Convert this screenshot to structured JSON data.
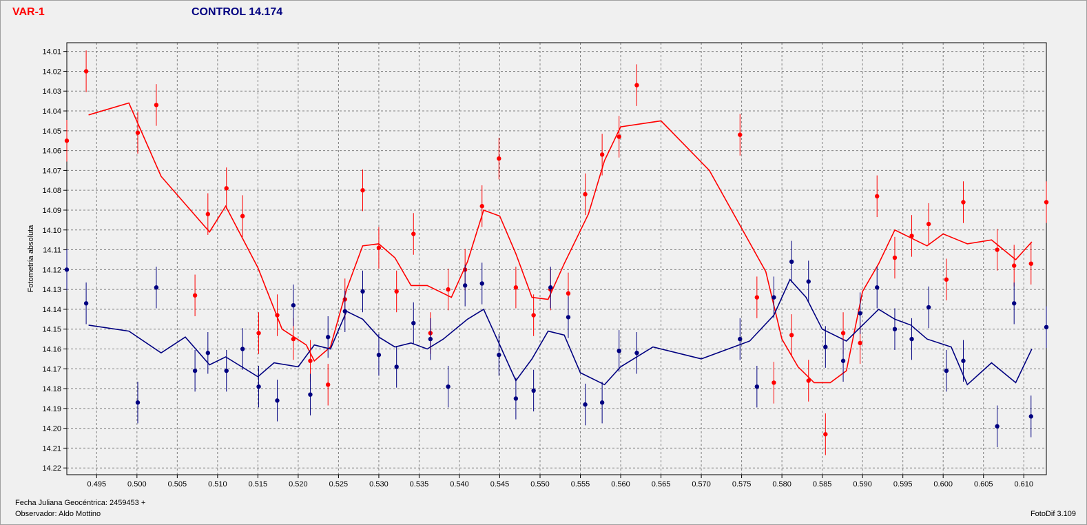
{
  "header": {
    "variable_title": "VAR-1",
    "control_title": "CONTROL 14.174"
  },
  "footer": {
    "jd_label": "Fecha Juliana Geocéntrica: 2459453 +",
    "observer_label": "Observador: Aldo Mottino",
    "version": "FotoDif 3.109"
  },
  "colors": {
    "variable": "#ff0000",
    "control": "#000080",
    "grid": "#808080",
    "background": "#f0f0f0"
  },
  "chart_data": {
    "type": "scatter",
    "ylabel": "Fotometría absoluta",
    "xlabel": "Fecha Juliana Geocéntrica: 2459453 +",
    "xlim": [
      0.4913,
      0.6128
    ],
    "ylim": [
      14.2234,
      14.0056
    ],
    "y_inverted": true,
    "grid": true,
    "x_ticks": [
      "0.495",
      "0.500",
      "0.505",
      "0.510",
      "0.515",
      "0.520",
      "0.525",
      "0.530",
      "0.535",
      "0.540",
      "0.545",
      "0.550",
      "0.555",
      "0.560",
      "0.565",
      "0.570",
      "0.575",
      "0.580",
      "0.585",
      "0.590",
      "0.595",
      "0.600",
      "0.605",
      "0.610"
    ],
    "y_ticks": [
      "14.01",
      "14.02",
      "14.03",
      "14.04",
      "14.05",
      "14.06",
      "14.07",
      "14.08",
      "14.09",
      "14.10",
      "14.11",
      "14.12",
      "14.13",
      "14.14",
      "14.15",
      "14.16",
      "14.17",
      "14.18",
      "14.19",
      "14.20",
      "14.21",
      "14.22"
    ],
    "error_bar": 0.0105,
    "series": [
      {
        "name": "VAR-1",
        "color": "#ff0000",
        "points": [
          [
            0.4913,
            14.055
          ],
          [
            0.4937,
            14.02
          ],
          [
            0.5001,
            14.051
          ],
          [
            0.5024,
            14.037
          ],
          [
            0.5072,
            14.133
          ],
          [
            0.5088,
            14.092
          ],
          [
            0.5111,
            14.079
          ],
          [
            0.5131,
            14.093
          ],
          [
            0.5151,
            14.152
          ],
          [
            0.5174,
            14.143
          ],
          [
            0.5194,
            14.155
          ],
          [
            0.5215,
            14.166
          ],
          [
            0.5237,
            14.178
          ],
          [
            0.5258,
            14.135
          ],
          [
            0.528,
            14.08
          ],
          [
            0.53,
            14.109
          ],
          [
            0.5322,
            14.131
          ],
          [
            0.5343,
            14.102
          ],
          [
            0.5364,
            14.152
          ],
          [
            0.5386,
            14.13
          ],
          [
            0.5407,
            14.12
          ],
          [
            0.5428,
            14.088
          ],
          [
            0.5449,
            14.064
          ],
          [
            0.547,
            14.129
          ],
          [
            0.5492,
            14.143
          ],
          [
            0.5513,
            14.13
          ],
          [
            0.5535,
            14.132
          ],
          [
            0.5556,
            14.082
          ],
          [
            0.5577,
            14.062
          ],
          [
            0.5598,
            14.053
          ],
          [
            0.562,
            14.027
          ],
          [
            0.5748,
            14.052
          ],
          [
            0.5769,
            14.134
          ],
          [
            0.579,
            14.177
          ],
          [
            0.5812,
            14.153
          ],
          [
            0.5833,
            14.176
          ],
          [
            0.5854,
            14.203
          ],
          [
            0.5876,
            14.152
          ],
          [
            0.5897,
            14.157
          ],
          [
            0.5918,
            14.083
          ],
          [
            0.594,
            14.114
          ],
          [
            0.5961,
            14.103
          ],
          [
            0.5982,
            14.097
          ],
          [
            0.6004,
            14.125
          ],
          [
            0.6025,
            14.086
          ],
          [
            0.6067,
            14.11
          ],
          [
            0.6088,
            14.118
          ],
          [
            0.6109,
            14.117
          ],
          [
            0.6128,
            14.086
          ]
        ],
        "trend": [
          [
            0.494,
            14.042
          ],
          [
            0.499,
            14.036
          ],
          [
            0.503,
            14.073
          ],
          [
            0.509,
            14.101
          ],
          [
            0.511,
            14.088
          ],
          [
            0.515,
            14.119
          ],
          [
            0.518,
            14.15
          ],
          [
            0.521,
            14.158
          ],
          [
            0.522,
            14.166
          ],
          [
            0.524,
            14.159
          ],
          [
            0.526,
            14.13
          ],
          [
            0.528,
            14.108
          ],
          [
            0.53,
            14.107
          ],
          [
            0.532,
            14.114
          ],
          [
            0.534,
            14.128
          ],
          [
            0.536,
            14.128
          ],
          [
            0.539,
            14.134
          ],
          [
            0.541,
            14.116
          ],
          [
            0.543,
            14.09
          ],
          [
            0.545,
            14.093
          ],
          [
            0.547,
            14.112
          ],
          [
            0.549,
            14.134
          ],
          [
            0.551,
            14.135
          ],
          [
            0.553,
            14.117
          ],
          [
            0.556,
            14.092
          ],
          [
            0.558,
            14.065
          ],
          [
            0.56,
            14.048
          ],
          [
            0.565,
            14.045
          ],
          [
            0.571,
            14.07
          ],
          [
            0.578,
            14.121
          ],
          [
            0.58,
            14.155
          ],
          [
            0.582,
            14.169
          ],
          [
            0.584,
            14.177
          ],
          [
            0.586,
            14.177
          ],
          [
            0.588,
            14.171
          ],
          [
            0.59,
            14.131
          ],
          [
            0.592,
            14.117
          ],
          [
            0.594,
            14.1
          ],
          [
            0.596,
            14.104
          ],
          [
            0.598,
            14.108
          ],
          [
            0.6,
            14.102
          ],
          [
            0.603,
            14.107
          ],
          [
            0.606,
            14.105
          ],
          [
            0.609,
            14.115
          ],
          [
            0.611,
            14.106
          ]
        ]
      },
      {
        "name": "CONTROL 14.174",
        "color": "#000080",
        "points": [
          [
            0.4913,
            14.12
          ],
          [
            0.4937,
            14.137
          ],
          [
            0.5001,
            14.187
          ],
          [
            0.5024,
            14.129
          ],
          [
            0.5072,
            14.171
          ],
          [
            0.5088,
            14.162
          ],
          [
            0.5111,
            14.171
          ],
          [
            0.5131,
            14.16
          ],
          [
            0.5151,
            14.179
          ],
          [
            0.5174,
            14.186
          ],
          [
            0.5194,
            14.138
          ],
          [
            0.5215,
            14.183
          ],
          [
            0.5237,
            14.154
          ],
          [
            0.5258,
            14.141
          ],
          [
            0.528,
            14.131
          ],
          [
            0.53,
            14.163
          ],
          [
            0.5322,
            14.169
          ],
          [
            0.5343,
            14.147
          ],
          [
            0.5364,
            14.155
          ],
          [
            0.5386,
            14.179
          ],
          [
            0.5407,
            14.128
          ],
          [
            0.5428,
            14.127
          ],
          [
            0.5449,
            14.163
          ],
          [
            0.547,
            14.185
          ],
          [
            0.5492,
            14.181
          ],
          [
            0.5513,
            14.129
          ],
          [
            0.5535,
            14.144
          ],
          [
            0.5556,
            14.188
          ],
          [
            0.5577,
            14.187
          ],
          [
            0.5598,
            14.161
          ],
          [
            0.562,
            14.162
          ],
          [
            0.5748,
            14.155
          ],
          [
            0.5769,
            14.179
          ],
          [
            0.579,
            14.134
          ],
          [
            0.5812,
            14.116
          ],
          [
            0.5833,
            14.126
          ],
          [
            0.5854,
            14.159
          ],
          [
            0.5876,
            14.166
          ],
          [
            0.5897,
            14.142
          ],
          [
            0.5918,
            14.129
          ],
          [
            0.594,
            14.15
          ],
          [
            0.5961,
            14.155
          ],
          [
            0.5982,
            14.139
          ],
          [
            0.6004,
            14.171
          ],
          [
            0.6025,
            14.166
          ],
          [
            0.6067,
            14.199
          ],
          [
            0.6088,
            14.137
          ],
          [
            0.6109,
            14.194
          ],
          [
            0.6128,
            14.149
          ]
        ],
        "trend": [
          [
            0.494,
            14.148
          ],
          [
            0.499,
            14.151
          ],
          [
            0.503,
            14.162
          ],
          [
            0.506,
            14.154
          ],
          [
            0.509,
            14.168
          ],
          [
            0.511,
            14.164
          ],
          [
            0.515,
            14.174
          ],
          [
            0.517,
            14.167
          ],
          [
            0.52,
            14.169
          ],
          [
            0.522,
            14.158
          ],
          [
            0.524,
            14.16
          ],
          [
            0.526,
            14.141
          ],
          [
            0.528,
            14.145
          ],
          [
            0.53,
            14.154
          ],
          [
            0.532,
            14.159
          ],
          [
            0.534,
            14.157
          ],
          [
            0.536,
            14.16
          ],
          [
            0.538,
            14.155
          ],
          [
            0.541,
            14.145
          ],
          [
            0.543,
            14.14
          ],
          [
            0.547,
            14.176
          ],
          [
            0.549,
            14.165
          ],
          [
            0.551,
            14.151
          ],
          [
            0.553,
            14.153
          ],
          [
            0.555,
            14.172
          ],
          [
            0.558,
            14.178
          ],
          [
            0.56,
            14.169
          ],
          [
            0.564,
            14.159
          ],
          [
            0.57,
            14.165
          ],
          [
            0.576,
            14.156
          ],
          [
            0.579,
            14.143
          ],
          [
            0.581,
            14.125
          ],
          [
            0.583,
            14.134
          ],
          [
            0.585,
            14.15
          ],
          [
            0.588,
            14.156
          ],
          [
            0.59,
            14.148
          ],
          [
            0.592,
            14.14
          ],
          [
            0.594,
            14.145
          ],
          [
            0.596,
            14.148
          ],
          [
            0.598,
            14.155
          ],
          [
            0.601,
            14.159
          ],
          [
            0.603,
            14.178
          ],
          [
            0.606,
            14.167
          ],
          [
            0.609,
            14.177
          ],
          [
            0.611,
            14.16
          ]
        ]
      }
    ]
  }
}
